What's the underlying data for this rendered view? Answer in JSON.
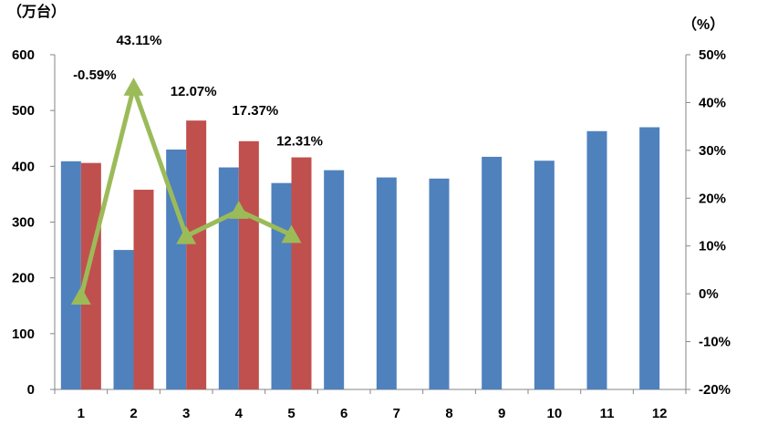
{
  "chart_data": {
    "type": "bar",
    "left_unit": "（万台）",
    "right_unit": "（%）",
    "categories": [
      "1",
      "2",
      "3",
      "4",
      "5",
      "6",
      "7",
      "8",
      "9",
      "10",
      "11",
      "12"
    ],
    "y_left": {
      "min": 0,
      "max": 600,
      "ticks": [
        "0",
        "100",
        "200",
        "300",
        "400",
        "500",
        "600"
      ]
    },
    "y_right": {
      "min": -20,
      "max": 50,
      "ticks": [
        "-20%",
        "-10%",
        "0%",
        "10%",
        "20%",
        "30%",
        "40%",
        "50%"
      ]
    },
    "series": [
      {
        "type": "bar",
        "axis": "left",
        "color": "#4F81BD",
        "values": [
          409,
          250,
          430,
          398,
          370,
          393,
          380,
          378,
          417,
          410,
          463,
          470
        ]
      },
      {
        "type": "bar",
        "axis": "left",
        "color": "#C0504D",
        "values": [
          406,
          358,
          482,
          445,
          416,
          null,
          null,
          null,
          null,
          null,
          null,
          null
        ]
      },
      {
        "type": "line",
        "axis": "right",
        "color": "#9BBB59",
        "marker": "triangle",
        "values": [
          -0.59,
          43.11,
          12.07,
          17.37,
          12.31,
          null,
          null,
          null,
          null,
          null,
          null,
          null
        ],
        "labels": [
          "-0.59%",
          "43.11%",
          "12.07%",
          "17.37%",
          "12.31%"
        ]
      }
    ],
    "grid": false,
    "legend": "none"
  }
}
